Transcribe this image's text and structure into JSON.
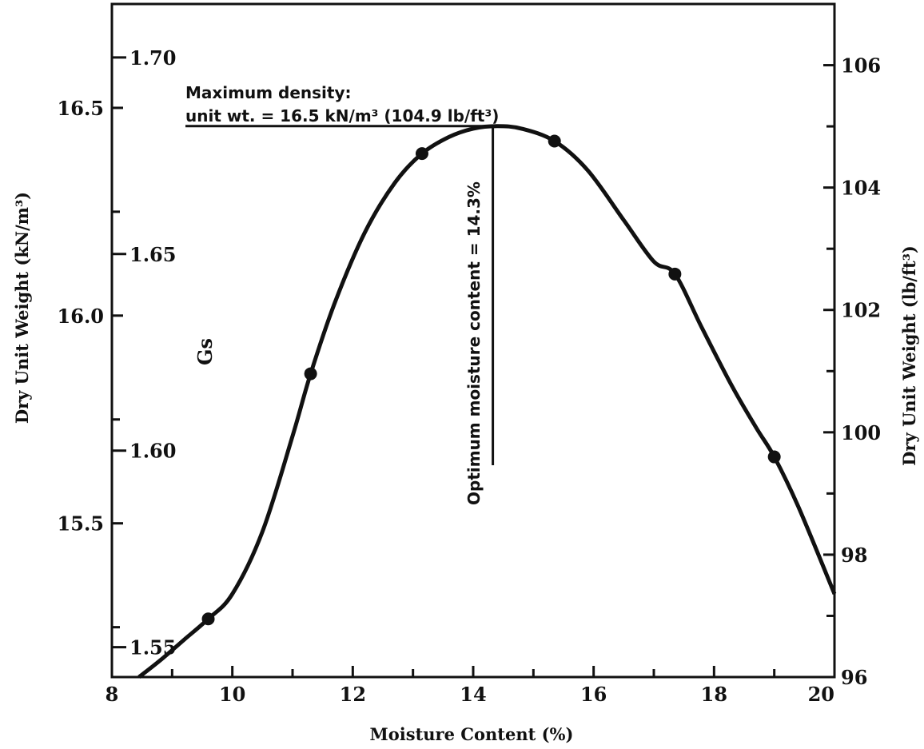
{
  "chart_data": {
    "type": "line",
    "title": "",
    "xlabel": "Moisture Content (%)",
    "ylabel_left": "Dry Unit Weight (kN/m³)",
    "ylabel_right": "Dry Unit Weight (lb/ft³)",
    "inner_axis_label": "Gs",
    "xlim": [
      8,
      20
    ],
    "ylim": [
      15.13,
      16.75
    ],
    "ylim_right": [
      96,
      107
    ],
    "inner_ylim": [
      1.5424,
      1.7136
    ],
    "x_ticks": [
      "8",
      "10",
      "12",
      "14",
      "16",
      "18",
      "20"
    ],
    "y_ticks_left": [
      "15.5",
      "16.0",
      "16.5"
    ],
    "y_ticks_right": [
      "96",
      "98",
      "100",
      "102",
      "104",
      "106"
    ],
    "y_ticks_inner": [
      "1.55",
      "1.60",
      "1.65",
      "1.70"
    ],
    "series": [
      {
        "values_x": [
          9.6,
          11.3,
          13.15,
          15.35,
          17.35,
          19.0
        ],
        "values_y": [
          15.27,
          15.86,
          16.39,
          16.42,
          16.1,
          15.66
        ]
      }
    ],
    "curve": {
      "x": [
        8.45,
        8.8,
        9.2,
        9.6,
        10.0,
        10.5,
        11.0,
        11.3,
        11.7,
        12.2,
        12.7,
        13.15,
        13.6,
        14.0,
        14.4,
        14.8,
        15.35,
        15.9,
        16.5,
        17.0,
        17.35,
        17.8,
        18.3,
        18.7,
        19.0,
        19.4,
        20.0
      ],
      "y": [
        15.13,
        15.17,
        15.22,
        15.27,
        15.33,
        15.48,
        15.71,
        15.86,
        16.03,
        16.2,
        16.32,
        16.39,
        16.43,
        16.45,
        16.456,
        16.45,
        16.42,
        16.35,
        16.23,
        16.13,
        16.1,
        15.97,
        15.83,
        15.73,
        15.66,
        15.54,
        15.33
      ]
    },
    "annotations": {
      "max_density_line1": "Maximum density:",
      "max_density_line2": "unit wt. = 16.5 kN/m³ (104.9 lb/ft³)",
      "optimum": "Optimum moisture content = 14.3%"
    },
    "max_density_y": 16.456,
    "optimum_x": 14.3,
    "colors": {
      "line": "#111111",
      "background": "#ffffff"
    },
    "grid": false
  }
}
